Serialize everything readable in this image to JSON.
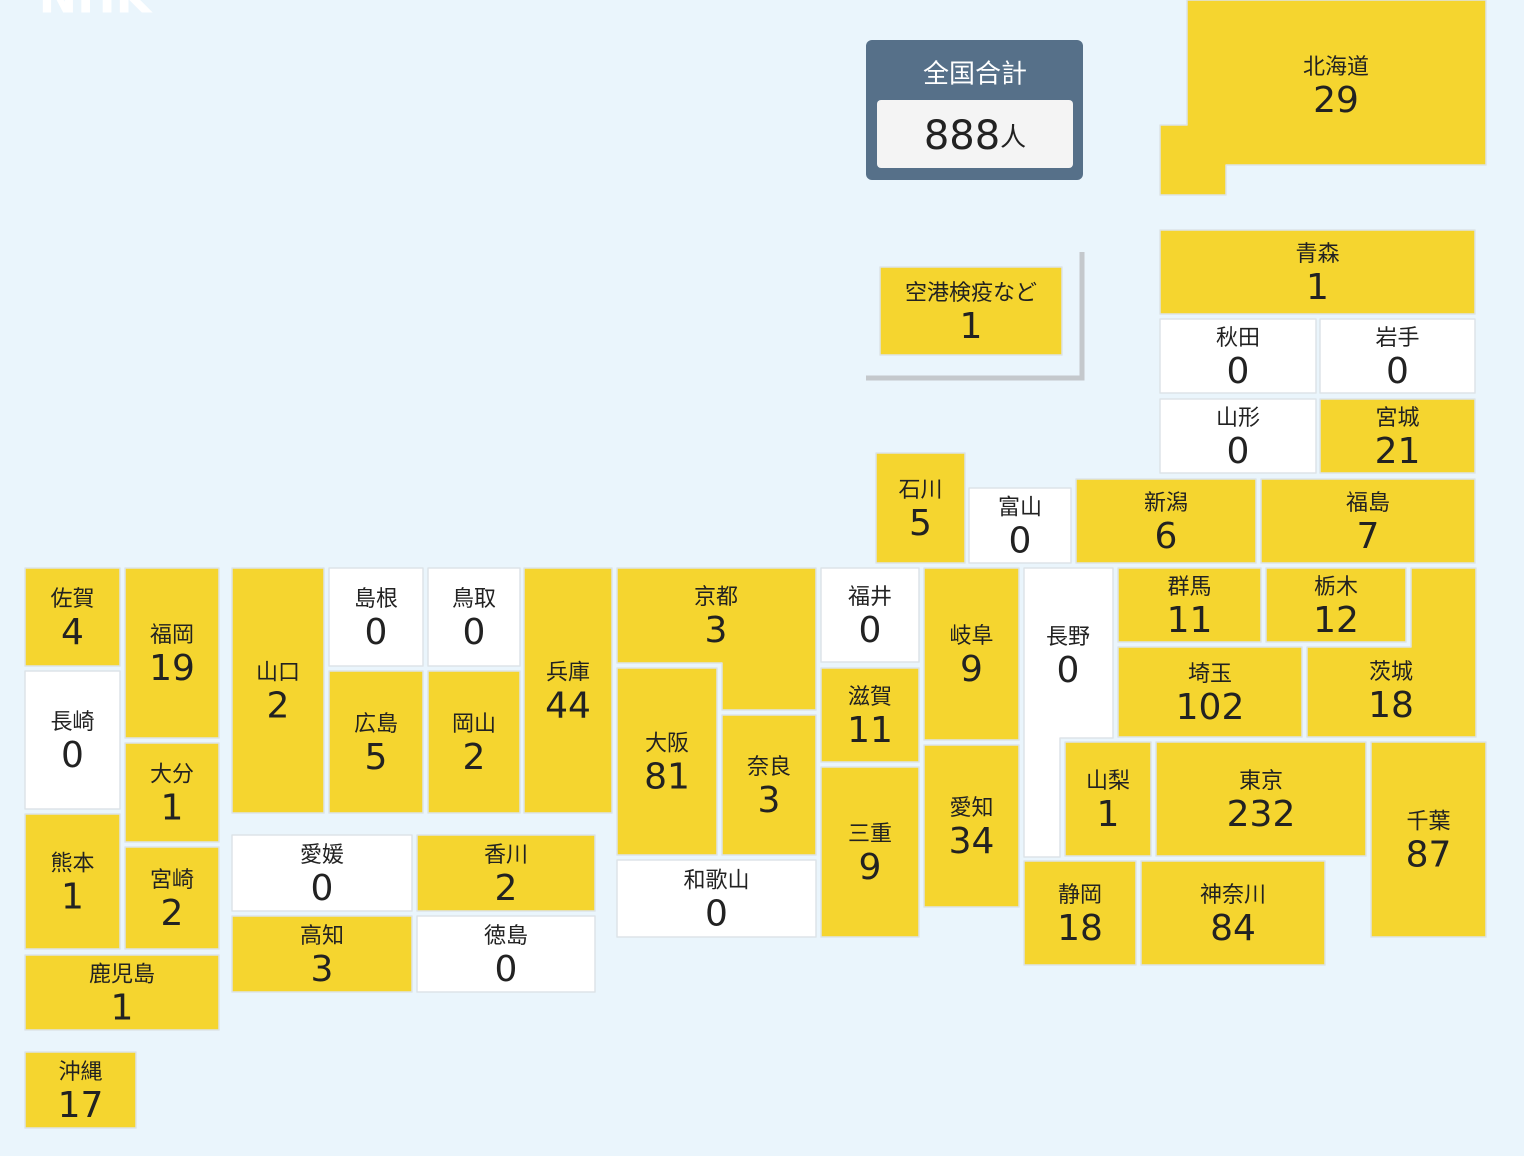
{
  "logo": "NHK",
  "total": {
    "label": "全国合計",
    "value": 888,
    "unit": "人"
  },
  "prefectures": [
    {
      "name": "北海道",
      "value": 29
    },
    {
      "name": "空港検疫など",
      "value": 1
    },
    {
      "name": "青森",
      "value": 1
    },
    {
      "name": "秋田",
      "value": 0
    },
    {
      "name": "岩手",
      "value": 0
    },
    {
      "name": "山形",
      "value": 0
    },
    {
      "name": "宮城",
      "value": 21
    },
    {
      "name": "石川",
      "value": 5
    },
    {
      "name": "富山",
      "value": 0
    },
    {
      "name": "新潟",
      "value": 6
    },
    {
      "name": "福島",
      "value": 7
    },
    {
      "name": "佐賀",
      "value": 4
    },
    {
      "name": "福岡",
      "value": 19
    },
    {
      "name": "長崎",
      "value": 0
    },
    {
      "name": "大分",
      "value": 1
    },
    {
      "name": "熊本",
      "value": 1
    },
    {
      "name": "宮崎",
      "value": 2
    },
    {
      "name": "鹿児島",
      "value": 1
    },
    {
      "name": "沖縄",
      "value": 17
    },
    {
      "name": "山口",
      "value": 2
    },
    {
      "name": "島根",
      "value": 0
    },
    {
      "name": "鳥取",
      "value": 0
    },
    {
      "name": "広島",
      "value": 5
    },
    {
      "name": "岡山",
      "value": 2
    },
    {
      "name": "兵庫",
      "value": 44
    },
    {
      "name": "愛媛",
      "value": 0
    },
    {
      "name": "香川",
      "value": 2
    },
    {
      "name": "高知",
      "value": 3
    },
    {
      "name": "徳島",
      "value": 0
    },
    {
      "name": "京都",
      "value": 3
    },
    {
      "name": "大阪",
      "value": 81
    },
    {
      "name": "奈良",
      "value": 3
    },
    {
      "name": "和歌山",
      "value": 0
    },
    {
      "name": "福井",
      "value": 0
    },
    {
      "name": "滋賀",
      "value": 11
    },
    {
      "name": "三重",
      "value": 9
    },
    {
      "name": "岐阜",
      "value": 9
    },
    {
      "name": "愛知",
      "value": 34
    },
    {
      "name": "長野",
      "value": 0
    },
    {
      "name": "群馬",
      "value": 11
    },
    {
      "name": "栃木",
      "value": 12
    },
    {
      "name": "茨城",
      "value": 18
    },
    {
      "name": "埼玉",
      "value": 102
    },
    {
      "name": "山梨",
      "value": 1
    },
    {
      "name": "東京",
      "value": 232
    },
    {
      "name": "千葉",
      "value": 87
    },
    {
      "name": "静岡",
      "value": 18
    },
    {
      "name": "神奈川",
      "value": 84
    }
  ]
}
